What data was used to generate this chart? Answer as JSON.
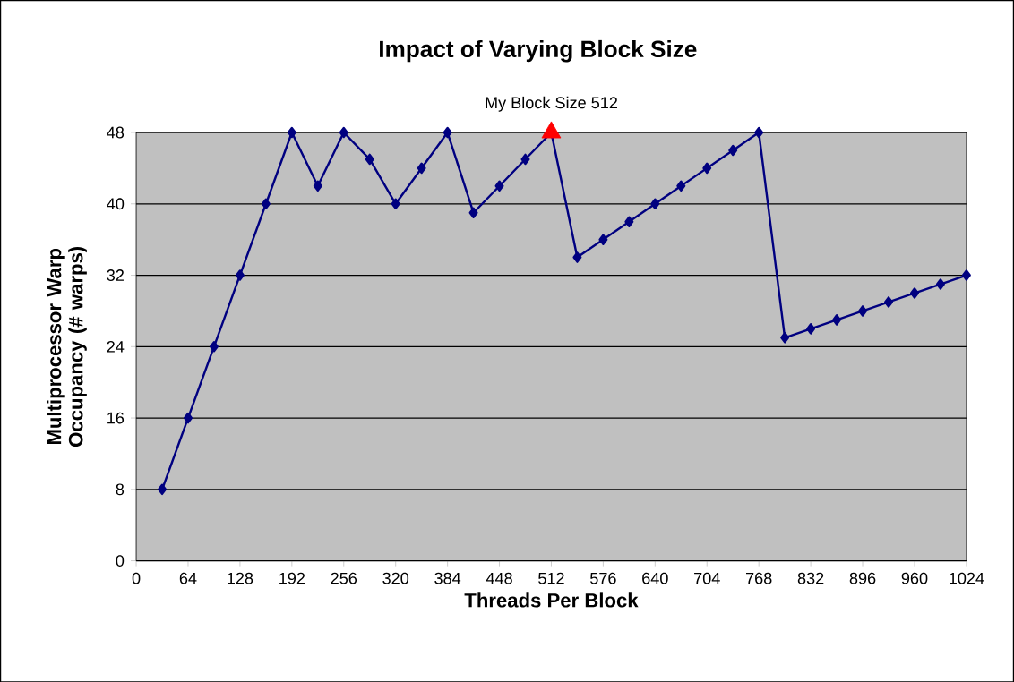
{
  "chart_data": {
    "type": "line",
    "title": "Impact of Varying Block Size",
    "xlabel": "Threads Per Block",
    "ylabel": "Multiprocessor Warp Occupancy (# warps)",
    "x": [
      32,
      64,
      96,
      128,
      160,
      192,
      224,
      256,
      288,
      320,
      352,
      384,
      416,
      448,
      480,
      512,
      544,
      576,
      608,
      640,
      672,
      704,
      736,
      768,
      800,
      832,
      864,
      896,
      928,
      960,
      992,
      1024
    ],
    "series": [
      {
        "color": "#000080",
        "marker": "diamond",
        "values": [
          8,
          16,
          24,
          32,
          40,
          48,
          42,
          48,
          45,
          40,
          44,
          48,
          39,
          42,
          45,
          48,
          34,
          36,
          38,
          40,
          42,
          44,
          46,
          48,
          25,
          26,
          27,
          28,
          29,
          30,
          31,
          32
        ]
      },
      {
        "type": "scatter",
        "color": "#ff0000",
        "marker": "triangle",
        "x": [
          512
        ],
        "values": [
          48
        ]
      }
    ],
    "annotations": [
      {
        "text": "My Block Size 512",
        "x": 512,
        "y": 48
      }
    ],
    "xlim": [
      0,
      1024
    ],
    "xticks": [
      0,
      64,
      128,
      192,
      256,
      320,
      384,
      448,
      512,
      576,
      640,
      704,
      768,
      832,
      896,
      960,
      1024
    ],
    "ylim": [
      0,
      48
    ],
    "yticks": [
      0,
      8,
      16,
      24,
      32,
      40,
      48
    ],
    "grid": "y"
  }
}
